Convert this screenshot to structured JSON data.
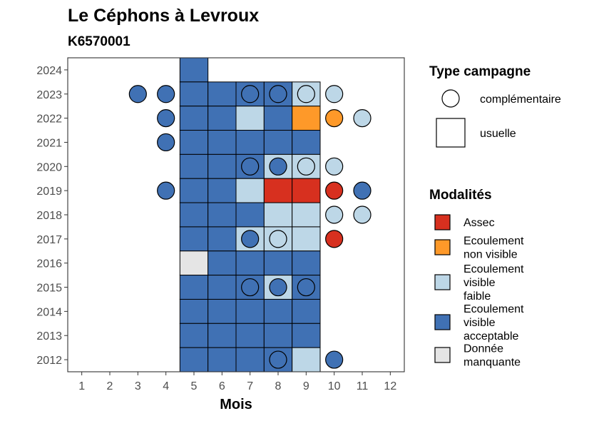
{
  "chart_data": {
    "type": "heatmap",
    "title": "Le Céphons à Levroux",
    "subtitle": "K6570001",
    "xlabel": "Mois",
    "ylabel": "",
    "x_ticks": [
      1,
      2,
      3,
      4,
      5,
      6,
      7,
      8,
      9,
      10,
      11,
      12
    ],
    "y_ticks": [
      2012,
      2013,
      2014,
      2015,
      2016,
      2017,
      2018,
      2019,
      2020,
      2021,
      2022,
      2023,
      2024
    ],
    "xlim": [
      0.5,
      12.5
    ],
    "ylim": [
      2011.5,
      2024.5
    ],
    "grid": false,
    "colors": {
      "Assec": "#d7301f",
      "Ecoulement non visible": "#fe9929",
      "Ecoulement visible faible": "#bdd7e7",
      "Ecoulement visible acceptable": "#4071b4",
      "Donnée manquante": "#e5e5e5"
    },
    "legend_campaign": {
      "title": "Type campagne",
      "items": [
        "complémentaire",
        "usuelle"
      ]
    },
    "legend_modalities": {
      "title": "Modalités",
      "items": [
        {
          "key": "Assec",
          "lines": [
            "Assec"
          ]
        },
        {
          "key": "Ecoulement non visible",
          "lines": [
            "Ecoulement",
            "non visible"
          ]
        },
        {
          "key": "Ecoulement visible faible",
          "lines": [
            "Ecoulement",
            "visible",
            "faible"
          ]
        },
        {
          "key": "Ecoulement visible acceptable",
          "lines": [
            "Ecoulement",
            "visible",
            "acceptable"
          ]
        },
        {
          "key": "Donnée manquante",
          "lines": [
            "Donnée",
            "manquante"
          ]
        }
      ]
    },
    "usuelle": [
      {
        "year": 2024,
        "month": 5,
        "value": "Ecoulement visible acceptable"
      },
      {
        "year": 2023,
        "month": 5,
        "value": "Ecoulement visible acceptable"
      },
      {
        "year": 2023,
        "month": 6,
        "value": "Ecoulement visible acceptable"
      },
      {
        "year": 2023,
        "month": 7,
        "value": "Ecoulement visible acceptable"
      },
      {
        "year": 2023,
        "month": 8,
        "value": "Ecoulement visible acceptable"
      },
      {
        "year": 2023,
        "month": 9,
        "value": "Ecoulement visible faible"
      },
      {
        "year": 2022,
        "month": 5,
        "value": "Ecoulement visible acceptable"
      },
      {
        "year": 2022,
        "month": 6,
        "value": "Ecoulement visible acceptable"
      },
      {
        "year": 2022,
        "month": 7,
        "value": "Ecoulement visible faible"
      },
      {
        "year": 2022,
        "month": 8,
        "value": "Ecoulement visible acceptable"
      },
      {
        "year": 2022,
        "month": 9,
        "value": "Ecoulement non visible"
      },
      {
        "year": 2021,
        "month": 5,
        "value": "Ecoulement visible acceptable"
      },
      {
        "year": 2021,
        "month": 6,
        "value": "Ecoulement visible acceptable"
      },
      {
        "year": 2021,
        "month": 7,
        "value": "Ecoulement visible acceptable"
      },
      {
        "year": 2021,
        "month": 8,
        "value": "Ecoulement visible acceptable"
      },
      {
        "year": 2021,
        "month": 9,
        "value": "Ecoulement visible acceptable"
      },
      {
        "year": 2020,
        "month": 5,
        "value": "Ecoulement visible acceptable"
      },
      {
        "year": 2020,
        "month": 6,
        "value": "Ecoulement visible acceptable"
      },
      {
        "year": 2020,
        "month": 7,
        "value": "Ecoulement visible acceptable"
      },
      {
        "year": 2020,
        "month": 8,
        "value": "Ecoulement visible faible"
      },
      {
        "year": 2020,
        "month": 9,
        "value": "Ecoulement visible faible"
      },
      {
        "year": 2019,
        "month": 5,
        "value": "Ecoulement visible acceptable"
      },
      {
        "year": 2019,
        "month": 6,
        "value": "Ecoulement visible acceptable"
      },
      {
        "year": 2019,
        "month": 7,
        "value": "Ecoulement visible faible"
      },
      {
        "year": 2019,
        "month": 8,
        "value": "Assec"
      },
      {
        "year": 2019,
        "month": 9,
        "value": "Assec"
      },
      {
        "year": 2018,
        "month": 5,
        "value": "Ecoulement visible acceptable"
      },
      {
        "year": 2018,
        "month": 6,
        "value": "Ecoulement visible acceptable"
      },
      {
        "year": 2018,
        "month": 7,
        "value": "Ecoulement visible acceptable"
      },
      {
        "year": 2018,
        "month": 8,
        "value": "Ecoulement visible faible"
      },
      {
        "year": 2018,
        "month": 9,
        "value": "Ecoulement visible faible"
      },
      {
        "year": 2017,
        "month": 5,
        "value": "Ecoulement visible acceptable"
      },
      {
        "year": 2017,
        "month": 6,
        "value": "Ecoulement visible acceptable"
      },
      {
        "year": 2017,
        "month": 7,
        "value": "Ecoulement visible faible"
      },
      {
        "year": 2017,
        "month": 8,
        "value": "Ecoulement visible faible"
      },
      {
        "year": 2017,
        "month": 9,
        "value": "Ecoulement visible faible"
      },
      {
        "year": 2016,
        "month": 5,
        "value": "Donnée manquante"
      },
      {
        "year": 2016,
        "month": 6,
        "value": "Ecoulement visible acceptable"
      },
      {
        "year": 2016,
        "month": 7,
        "value": "Ecoulement visible acceptable"
      },
      {
        "year": 2016,
        "month": 8,
        "value": "Ecoulement visible acceptable"
      },
      {
        "year": 2016,
        "month": 9,
        "value": "Ecoulement visible acceptable"
      },
      {
        "year": 2015,
        "month": 5,
        "value": "Ecoulement visible acceptable"
      },
      {
        "year": 2015,
        "month": 6,
        "value": "Ecoulement visible acceptable"
      },
      {
        "year": 2015,
        "month": 7,
        "value": "Ecoulement visible acceptable"
      },
      {
        "year": 2015,
        "month": 8,
        "value": "Ecoulement visible faible"
      },
      {
        "year": 2015,
        "month": 9,
        "value": "Ecoulement visible acceptable"
      },
      {
        "year": 2014,
        "month": 5,
        "value": "Ecoulement visible acceptable"
      },
      {
        "year": 2014,
        "month": 6,
        "value": "Ecoulement visible acceptable"
      },
      {
        "year": 2014,
        "month": 7,
        "value": "Ecoulement visible acceptable"
      },
      {
        "year": 2014,
        "month": 8,
        "value": "Ecoulement visible acceptable"
      },
      {
        "year": 2014,
        "month": 9,
        "value": "Ecoulement visible acceptable"
      },
      {
        "year": 2013,
        "month": 5,
        "value": "Ecoulement visible acceptable"
      },
      {
        "year": 2013,
        "month": 6,
        "value": "Ecoulement visible acceptable"
      },
      {
        "year": 2013,
        "month": 7,
        "value": "Ecoulement visible acceptable"
      },
      {
        "year": 2013,
        "month": 8,
        "value": "Ecoulement visible acceptable"
      },
      {
        "year": 2013,
        "month": 9,
        "value": "Ecoulement visible acceptable"
      },
      {
        "year": 2012,
        "month": 5,
        "value": "Ecoulement visible acceptable"
      },
      {
        "year": 2012,
        "month": 6,
        "value": "Ecoulement visible acceptable"
      },
      {
        "year": 2012,
        "month": 7,
        "value": "Ecoulement visible acceptable"
      },
      {
        "year": 2012,
        "month": 8,
        "value": "Ecoulement visible acceptable"
      },
      {
        "year": 2012,
        "month": 9,
        "value": "Ecoulement visible faible"
      }
    ],
    "complementaire": [
      {
        "year": 2023,
        "month": 3,
        "value": "Ecoulement visible acceptable"
      },
      {
        "year": 2023,
        "month": 4,
        "value": "Ecoulement visible acceptable"
      },
      {
        "year": 2023,
        "month": 7,
        "value": "Ecoulement visible acceptable"
      },
      {
        "year": 2023,
        "month": 8,
        "value": "Ecoulement visible acceptable"
      },
      {
        "year": 2023,
        "month": 9,
        "value": "Ecoulement visible faible"
      },
      {
        "year": 2023,
        "month": 10,
        "value": "Ecoulement visible faible"
      },
      {
        "year": 2022,
        "month": 4,
        "value": "Ecoulement visible acceptable"
      },
      {
        "year": 2022,
        "month": 10,
        "value": "Ecoulement non visible"
      },
      {
        "year": 2022,
        "month": 11,
        "value": "Ecoulement visible faible"
      },
      {
        "year": 2021,
        "month": 4,
        "value": "Ecoulement visible acceptable"
      },
      {
        "year": 2020,
        "month": 7,
        "value": "Ecoulement visible acceptable"
      },
      {
        "year": 2020,
        "month": 8,
        "value": "Ecoulement visible acceptable"
      },
      {
        "year": 2020,
        "month": 9,
        "value": "Ecoulement visible faible"
      },
      {
        "year": 2020,
        "month": 10,
        "value": "Ecoulement visible faible"
      },
      {
        "year": 2019,
        "month": 4,
        "value": "Ecoulement visible acceptable"
      },
      {
        "year": 2019,
        "month": 10,
        "value": "Assec"
      },
      {
        "year": 2019,
        "month": 11,
        "value": "Ecoulement visible acceptable"
      },
      {
        "year": 2018,
        "month": 10,
        "value": "Ecoulement visible faible"
      },
      {
        "year": 2018,
        "month": 11,
        "value": "Ecoulement visible faible"
      },
      {
        "year": 2017,
        "month": 7,
        "value": "Ecoulement visible acceptable"
      },
      {
        "year": 2017,
        "month": 8,
        "value": "Ecoulement visible faible"
      },
      {
        "year": 2017,
        "month": 10,
        "value": "Assec"
      },
      {
        "year": 2015,
        "month": 7,
        "value": "Ecoulement visible acceptable"
      },
      {
        "year": 2015,
        "month": 8,
        "value": "Ecoulement visible acceptable"
      },
      {
        "year": 2015,
        "month": 9,
        "value": "Ecoulement visible acceptable"
      },
      {
        "year": 2012,
        "month": 8,
        "value": "Ecoulement visible acceptable"
      },
      {
        "year": 2012,
        "month": 10,
        "value": "Ecoulement visible acceptable"
      }
    ]
  }
}
